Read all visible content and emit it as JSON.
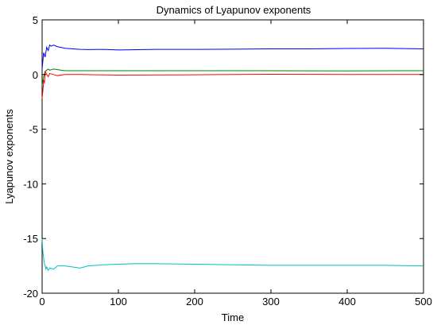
{
  "chart_data": {
    "type": "line",
    "title": "Dynamics of Lyapunov exponents",
    "xlabel": "Time",
    "ylabel": "Lyapunov exponents",
    "xlim": [
      0,
      500
    ],
    "ylim": [
      -20,
      5
    ],
    "xticks": [
      0,
      100,
      200,
      300,
      400,
      500
    ],
    "yticks": [
      5,
      0,
      -5,
      -10,
      -15,
      -20
    ],
    "xtick_labels": [
      "0",
      "100",
      "200",
      "300",
      "400",
      "500"
    ],
    "ytick_labels": [
      "5",
      "0",
      "-5",
      "-10",
      "-15",
      "-20"
    ],
    "grid": false,
    "series": [
      {
        "color": "#0000ff",
        "x": [
          0,
          2,
          4,
          6,
          8,
          10,
          12,
          15,
          20,
          30,
          40,
          50,
          60,
          80,
          100,
          150,
          200,
          250,
          300,
          350,
          400,
          450,
          500
        ],
        "y": [
          0.5,
          2.0,
          1.6,
          2.5,
          2.2,
          2.7,
          2.6,
          2.7,
          2.55,
          2.4,
          2.35,
          2.3,
          2.28,
          2.3,
          2.25,
          2.3,
          2.3,
          2.32,
          2.35,
          2.35,
          2.38,
          2.4,
          2.35
        ]
      },
      {
        "color": "#008000",
        "x": [
          0,
          2,
          4,
          6,
          8,
          10,
          15,
          20,
          30,
          50,
          100,
          200,
          300,
          400,
          500
        ],
        "y": [
          -1.0,
          -0.2,
          0.3,
          0.4,
          0.5,
          0.4,
          0.5,
          0.45,
          0.35,
          0.35,
          0.35,
          0.35,
          0.35,
          0.33,
          0.35
        ]
      },
      {
        "color": "#ff0000",
        "x": [
          0,
          1,
          2,
          3,
          4,
          6,
          8,
          10,
          15,
          20,
          30,
          50,
          100,
          200,
          300,
          400,
          500
        ],
        "y": [
          -2.2,
          -1.5,
          -0.5,
          -0.8,
          0.3,
          0.0,
          -0.2,
          0.1,
          0.0,
          -0.1,
          0.0,
          0.0,
          -0.05,
          -0.02,
          0.02,
          0.0,
          0.0
        ]
      },
      {
        "color": "#00bfbf",
        "x": [
          0,
          1,
          2,
          3,
          4,
          5,
          6,
          8,
          10,
          15,
          20,
          30,
          40,
          50,
          60,
          80,
          100,
          120,
          150,
          200,
          250,
          300,
          350,
          400,
          450,
          500
        ],
        "y": [
          -15.0,
          -16.2,
          -16.8,
          -17.3,
          -17.5,
          -17.8,
          -17.6,
          -17.9,
          -17.7,
          -17.8,
          -17.5,
          -17.5,
          -17.6,
          -17.7,
          -17.5,
          -17.4,
          -17.35,
          -17.3,
          -17.3,
          -17.35,
          -17.4,
          -17.45,
          -17.45,
          -17.45,
          -17.45,
          -17.5
        ]
      }
    ]
  }
}
